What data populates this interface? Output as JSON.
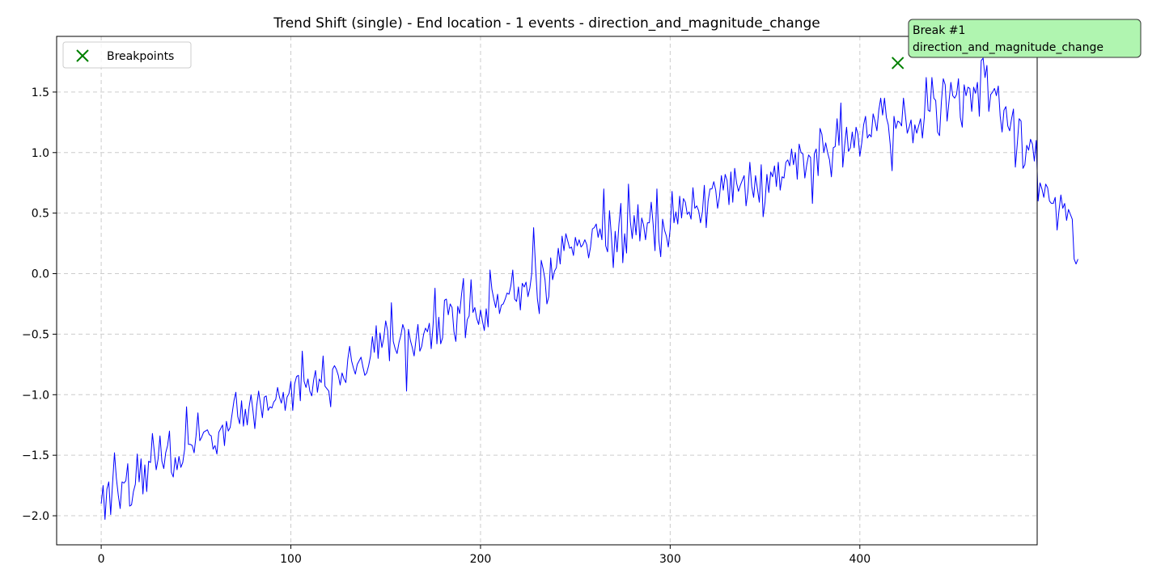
{
  "chart_data": {
    "type": "line",
    "title": "Trend Shift (single) - End location - 1 events - direction_and_magnitude_change",
    "xlabel": "",
    "ylabel": "",
    "xlim": [
      -23.5,
      493.5
    ],
    "ylim": [
      -2.24,
      1.96
    ],
    "grid": true,
    "grid_style": "dashed",
    "legend_position": "upper-left",
    "colors": {
      "series": "#0000ff",
      "breakpoint": "#008000",
      "annotation_bg": "#b0f5b0"
    },
    "x_ticks": [
      0,
      100,
      200,
      300,
      400
    ],
    "x_tick_labels": [
      "0",
      "100",
      "200",
      "300",
      "400"
    ],
    "y_ticks": [
      -2.0,
      -1.5,
      -1.0,
      -0.5,
      0.0,
      0.5,
      1.0,
      1.5
    ],
    "y_tick_labels": [
      "−2.0",
      "−1.5",
      "−1.0",
      "−0.5",
      "0.0",
      "0.5",
      "1.0",
      "1.5"
    ],
    "series": [
      {
        "name": "",
        "x_start": 0,
        "x_step": 1,
        "values": [
          -1.9,
          -1.75,
          -2.03,
          -1.78,
          -1.72,
          -1.99,
          -1.73,
          -1.48,
          -1.69,
          -1.83,
          -1.94,
          -1.72,
          -1.73,
          -1.71,
          -1.57,
          -1.92,
          -1.91,
          -1.8,
          -1.74,
          -1.49,
          -1.72,
          -1.53,
          -1.82,
          -1.58,
          -1.8,
          -1.55,
          -1.56,
          -1.32,
          -1.47,
          -1.62,
          -1.53,
          -1.34,
          -1.55,
          -1.61,
          -1.48,
          -1.42,
          -1.3,
          -1.64,
          -1.68,
          -1.52,
          -1.62,
          -1.51,
          -1.6,
          -1.56,
          -1.45,
          -1.1,
          -1.41,
          -1.41,
          -1.42,
          -1.48,
          -1.34,
          -1.15,
          -1.38,
          -1.35,
          -1.31,
          -1.3,
          -1.29,
          -1.33,
          -1.34,
          -1.45,
          -1.42,
          -1.49,
          -1.31,
          -1.28,
          -1.25,
          -1.42,
          -1.22,
          -1.3,
          -1.27,
          -1.16,
          -1.05,
          -0.98,
          -1.18,
          -1.24,
          -1.05,
          -1.26,
          -1.12,
          -1.25,
          -1.1,
          -1.0,
          -1.13,
          -1.28,
          -1.09,
          -0.97,
          -1.08,
          -1.19,
          -1.02,
          -1.01,
          -1.13,
          -1.1,
          -1.11,
          -1.06,
          -1.04,
          -0.94,
          -1.02,
          -1.07,
          -0.98,
          -1.13,
          -1.02,
          -0.99,
          -0.89,
          -1.13,
          -0.91,
          -0.85,
          -0.84,
          -1.05,
          -0.64,
          -0.89,
          -0.94,
          -0.87,
          -0.97,
          -1.01,
          -0.88,
          -0.8,
          -0.98,
          -0.87,
          -0.9,
          -0.68,
          -0.93,
          -0.95,
          -0.97,
          -1.1,
          -0.79,
          -0.76,
          -0.79,
          -0.84,
          -0.92,
          -0.82,
          -0.87,
          -0.9,
          -0.71,
          -0.6,
          -0.72,
          -0.78,
          -0.83,
          -0.75,
          -0.72,
          -0.69,
          -0.77,
          -0.84,
          -0.82,
          -0.76,
          -0.68,
          -0.52,
          -0.65,
          -0.43,
          -0.7,
          -0.49,
          -0.61,
          -0.53,
          -0.39,
          -0.47,
          -0.72,
          -0.24,
          -0.56,
          -0.62,
          -0.66,
          -0.57,
          -0.51,
          -0.42,
          -0.47,
          -0.97,
          -0.46,
          -0.55,
          -0.61,
          -0.68,
          -0.54,
          -0.42,
          -0.64,
          -0.6,
          -0.5,
          -0.45,
          -0.48,
          -0.41,
          -0.62,
          -0.42,
          -0.12,
          -0.58,
          -0.36,
          -0.58,
          -0.53,
          -0.22,
          -0.21,
          -0.34,
          -0.25,
          -0.28,
          -0.48,
          -0.56,
          -0.27,
          -0.33,
          -0.17,
          -0.04,
          -0.53,
          -0.38,
          -0.35,
          -0.05,
          -0.32,
          -0.28,
          -0.37,
          -0.42,
          -0.3,
          -0.39,
          -0.47,
          -0.29,
          -0.44,
          0.03,
          -0.13,
          -0.21,
          -0.28,
          -0.17,
          -0.33,
          -0.26,
          -0.25,
          -0.21,
          -0.16,
          -0.17,
          -0.1,
          0.03,
          -0.21,
          -0.23,
          -0.11,
          -0.3,
          -0.08,
          -0.11,
          -0.07,
          -0.19,
          -0.12,
          0.0,
          0.38,
          0.06,
          -0.21,
          -0.33,
          0.11,
          0.04,
          -0.05,
          -0.25,
          -0.19,
          0.13,
          -0.05,
          0.02,
          0.05,
          0.21,
          0.08,
          0.31,
          0.19,
          0.33,
          0.27,
          0.21,
          0.22,
          0.15,
          0.3,
          0.23,
          0.28,
          0.22,
          0.24,
          0.28,
          0.24,
          0.13,
          0.22,
          0.37,
          0.38,
          0.41,
          0.3,
          0.37,
          0.28,
          0.7,
          0.23,
          0.18,
          0.52,
          0.31,
          0.05,
          0.35,
          0.18,
          0.41,
          0.58,
          0.09,
          0.33,
          0.17,
          0.74,
          0.43,
          0.29,
          0.48,
          0.32,
          0.57,
          0.27,
          0.46,
          0.4,
          0.28,
          0.42,
          0.42,
          0.59,
          0.41,
          0.19,
          0.7,
          0.28,
          0.14,
          0.45,
          0.36,
          0.31,
          0.22,
          0.37,
          0.68,
          0.42,
          0.51,
          0.41,
          0.64,
          0.46,
          0.62,
          0.59,
          0.49,
          0.51,
          0.45,
          0.71,
          0.54,
          0.56,
          0.52,
          0.42,
          0.51,
          0.73,
          0.38,
          0.6,
          0.7,
          0.7,
          0.76,
          0.69,
          0.54,
          0.64,
          0.81,
          0.69,
          0.82,
          0.77,
          0.57,
          0.84,
          0.59,
          0.87,
          0.75,
          0.68,
          0.73,
          0.77,
          0.81,
          0.56,
          0.68,
          0.92,
          0.72,
          0.63,
          0.81,
          0.7,
          0.59,
          0.9,
          0.47,
          0.59,
          0.82,
          0.67,
          0.84,
          0.8,
          0.89,
          0.72,
          0.92,
          0.69,
          0.8,
          0.79,
          0.92,
          0.94,
          0.89,
          1.03,
          0.9,
          1.0,
          0.78,
          1.07,
          1.0,
          0.99,
          0.79,
          0.9,
          0.98,
          0.96,
          0.58,
          0.99,
          1.03,
          0.81,
          1.2,
          1.15,
          1.0,
          1.08,
          1.0,
          0.94,
          0.8,
          1.04,
          1.05,
          1.28,
          1.06,
          1.41,
          0.88,
          1.06,
          1.21,
          1.01,
          1.04,
          1.17,
          1.04,
          1.21,
          1.15,
          0.97,
          1.08,
          1.23,
          1.3,
          1.12,
          1.15,
          1.13,
          1.32,
          1.26,
          1.18,
          1.35,
          1.45,
          1.31,
          1.45,
          1.29,
          1.23,
          1.07,
          0.85,
          1.3,
          1.2,
          1.26,
          1.25,
          1.22,
          1.45,
          1.31,
          1.16,
          1.21,
          1.27,
          1.08,
          1.23,
          1.16,
          1.22,
          1.28,
          1.12,
          1.29,
          1.62,
          1.35,
          1.34,
          1.62,
          1.45,
          1.43,
          1.17,
          1.14,
          1.42,
          1.61,
          1.56,
          1.26,
          1.42,
          1.58,
          1.47,
          1.45,
          1.48,
          1.61,
          1.29,
          1.21,
          1.56,
          1.47,
          1.54,
          1.53,
          1.34,
          1.54,
          1.49,
          1.58,
          1.3,
          1.76,
          1.78,
          1.62,
          1.72,
          1.34,
          1.48,
          1.5,
          1.53,
          1.47,
          1.55,
          1.3,
          1.17,
          1.35,
          1.38,
          1.22,
          1.18,
          1.28,
          1.36,
          0.88,
          1.07,
          1.28,
          1.26,
          0.87,
          0.9,
          1.06,
          1.02,
          1.11,
          1.07,
          0.93,
          1.1,
          0.6,
          0.75,
          0.7,
          0.63,
          0.74,
          0.71,
          0.6,
          0.58,
          0.58,
          0.63,
          0.36,
          0.52,
          0.65,
          0.54,
          0.58,
          0.44,
          0.53,
          0.49,
          0.45,
          0.12,
          0.08,
          0.12
        ]
      }
    ],
    "breakpoints": [
      {
        "x": 420,
        "y": 1.74
      }
    ],
    "legend": [
      {
        "label": "Breakpoints"
      }
    ],
    "annotation": {
      "x": 420,
      "y": 1.74,
      "line1": "Break #1",
      "line2": "direction_and_magnitude_change"
    }
  }
}
